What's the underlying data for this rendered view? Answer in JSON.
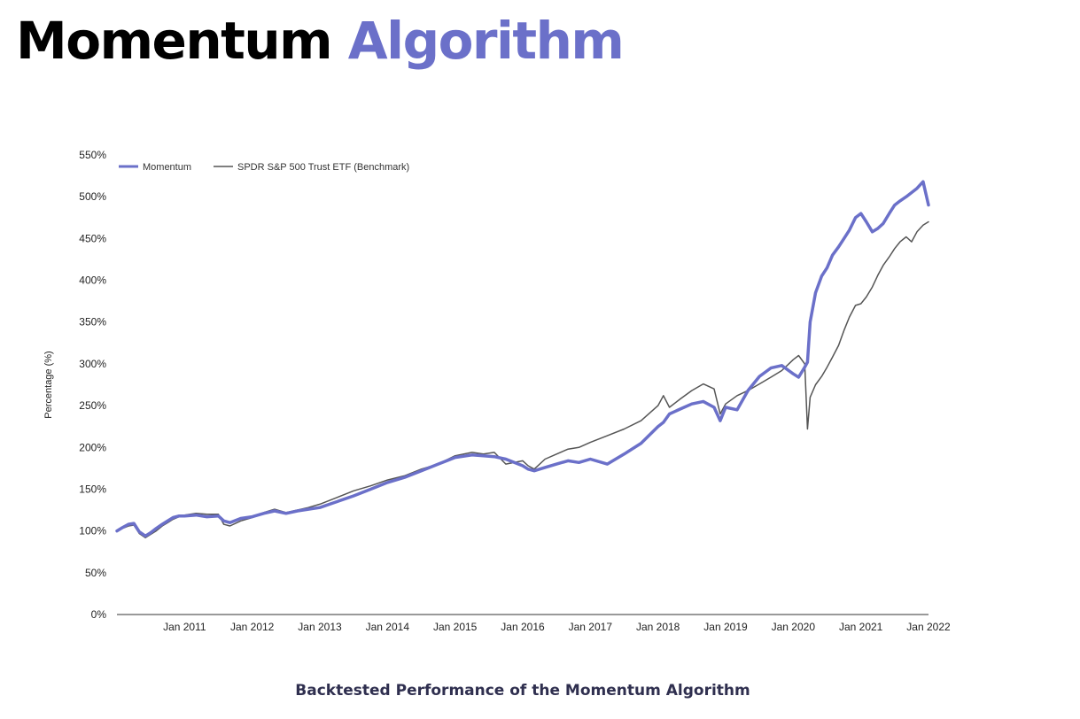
{
  "page": {
    "title_part1": "Momentum",
    "title_part2": "Algorithm",
    "caption": "Backtested Performance of the Momentum Algorithm"
  },
  "colors": {
    "momentum": "#6b70c9",
    "benchmark": "#555555",
    "axis": "#333333",
    "title_accent": "#6b70c9"
  },
  "chart_data": {
    "type": "line",
    "title": "",
    "xlabel": "",
    "ylabel": "Percentage (%)",
    "ylim": [
      0,
      550
    ],
    "yticks": [
      0,
      50,
      100,
      150,
      200,
      250,
      300,
      350,
      400,
      450,
      500,
      550
    ],
    "ytick_labels": [
      "0%",
      "50%",
      "100%",
      "150%",
      "200%",
      "250%",
      "300%",
      "350%",
      "400%",
      "450%",
      "500%",
      "550%"
    ],
    "xlim": [
      2010.0,
      2022.0
    ],
    "xticks": [
      2011,
      2012,
      2013,
      2014,
      2015,
      2016,
      2017,
      2018,
      2019,
      2020,
      2021,
      2022
    ],
    "xtick_labels": [
      "Jan 2011",
      "Jan 2012",
      "Jan 2013",
      "Jan 2014",
      "Jan 2015",
      "Jan 2016",
      "Jan 2017",
      "Jan 2018",
      "Jan 2019",
      "Jan 2020",
      "Jan 2021",
      "Jan 2022"
    ],
    "grid": false,
    "legend_position": "top-left",
    "series": [
      {
        "name": "Momentum",
        "x": [
          2010.0,
          2010.08,
          2010.17,
          2010.25,
          2010.33,
          2010.42,
          2010.5,
          2010.58,
          2010.67,
          2010.75,
          2010.83,
          2010.92,
          2011.0,
          2011.17,
          2011.33,
          2011.5,
          2011.58,
          2011.67,
          2011.83,
          2012.0,
          2012.17,
          2012.33,
          2012.5,
          2012.67,
          2012.83,
          2013.0,
          2013.25,
          2013.5,
          2013.75,
          2014.0,
          2014.25,
          2014.5,
          2014.75,
          2015.0,
          2015.25,
          2015.42,
          2015.58,
          2015.75,
          2016.0,
          2016.08,
          2016.17,
          2016.33,
          2016.5,
          2016.67,
          2016.83,
          2017.0,
          2017.25,
          2017.5,
          2017.75,
          2018.0,
          2018.08,
          2018.17,
          2018.33,
          2018.5,
          2018.67,
          2018.83,
          2018.92,
          2019.0,
          2019.17,
          2019.33,
          2019.5,
          2019.67,
          2019.83,
          2020.0,
          2020.08,
          2020.17,
          2020.21,
          2020.25,
          2020.33,
          2020.42,
          2020.5,
          2020.58,
          2020.67,
          2020.75,
          2020.83,
          2020.92,
          2021.0,
          2021.08,
          2021.17,
          2021.25,
          2021.33,
          2021.42,
          2021.5,
          2021.58,
          2021.67,
          2021.75,
          2021.83,
          2021.92,
          2022.0
        ],
        "y": [
          100,
          104,
          108,
          109,
          99,
          94,
          98,
          103,
          108,
          112,
          116,
          118,
          118,
          119,
          117,
          118,
          112,
          110,
          115,
          117,
          121,
          124,
          121,
          124,
          126,
          128,
          135,
          142,
          150,
          158,
          164,
          172,
          180,
          188,
          191,
          190,
          189,
          186,
          178,
          174,
          172,
          176,
          180,
          184,
          182,
          186,
          180,
          192,
          205,
          225,
          230,
          240,
          246,
          252,
          255,
          248,
          232,
          248,
          245,
          268,
          285,
          295,
          298,
          288,
          284,
          296,
          302,
          350,
          385,
          405,
          415,
          430,
          440,
          450,
          460,
          475,
          480,
          470,
          458,
          462,
          468,
          480,
          490,
          495,
          500,
          505,
          510,
          518,
          490
        ]
      },
      {
        "name": "SPDR S&P 500 Trust ETF (Benchmark)",
        "x": [
          2010.0,
          2010.08,
          2010.17,
          2010.25,
          2010.33,
          2010.42,
          2010.5,
          2010.58,
          2010.67,
          2010.75,
          2010.83,
          2010.92,
          2011.0,
          2011.17,
          2011.33,
          2011.5,
          2011.58,
          2011.67,
          2011.83,
          2012.0,
          2012.17,
          2012.33,
          2012.5,
          2012.67,
          2012.83,
          2013.0,
          2013.25,
          2013.5,
          2013.75,
          2014.0,
          2014.25,
          2014.5,
          2014.75,
          2015.0,
          2015.25,
          2015.42,
          2015.58,
          2015.75,
          2016.0,
          2016.08,
          2016.17,
          2016.33,
          2016.5,
          2016.67,
          2016.83,
          2017.0,
          2017.25,
          2017.5,
          2017.75,
          2018.0,
          2018.08,
          2018.17,
          2018.33,
          2018.5,
          2018.67,
          2018.83,
          2018.92,
          2019.0,
          2019.17,
          2019.33,
          2019.5,
          2019.67,
          2019.83,
          2020.0,
          2020.08,
          2020.17,
          2020.21,
          2020.25,
          2020.33,
          2020.42,
          2020.5,
          2020.58,
          2020.67,
          2020.75,
          2020.83,
          2020.92,
          2021.0,
          2021.08,
          2021.17,
          2021.25,
          2021.33,
          2021.42,
          2021.5,
          2021.58,
          2021.67,
          2021.75,
          2021.83,
          2021.92,
          2022.0
        ],
        "y": [
          100,
          103,
          106,
          107,
          97,
          92,
          96,
          100,
          106,
          110,
          114,
          117,
          119,
          121,
          120,
          120,
          108,
          106,
          112,
          116,
          122,
          126,
          122,
          125,
          128,
          132,
          140,
          148,
          154,
          161,
          166,
          174,
          180,
          190,
          194,
          192,
          194,
          180,
          184,
          178,
          174,
          186,
          192,
          198,
          200,
          206,
          214,
          222,
          232,
          250,
          262,
          248,
          258,
          268,
          276,
          270,
          240,
          252,
          262,
          268,
          276,
          284,
          292,
          305,
          310,
          300,
          222,
          260,
          275,
          285,
          296,
          308,
          322,
          340,
          356,
          370,
          372,
          380,
          392,
          406,
          418,
          428,
          438,
          446,
          452,
          446,
          458,
          466,
          470
        ]
      }
    ]
  }
}
